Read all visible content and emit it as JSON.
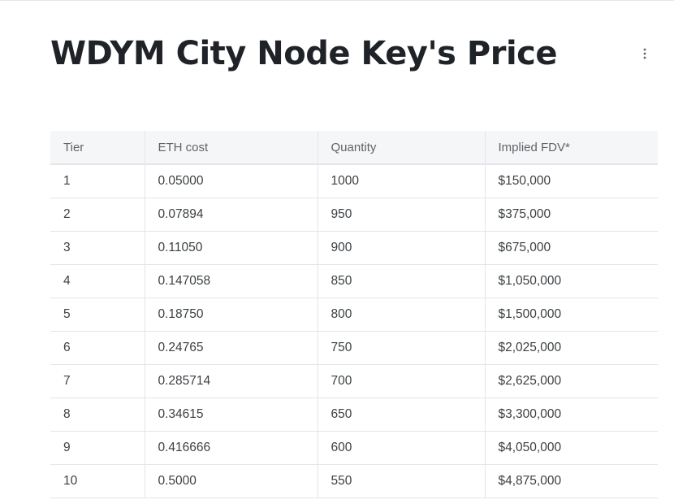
{
  "page": {
    "title": "WDYM City Node Key's Price"
  },
  "toolbar": {
    "more_icon": "more-vertical-icon"
  },
  "table": {
    "columns": [
      "Tier",
      "ETH cost",
      "Quantity",
      "Implied FDV*"
    ],
    "rows": [
      [
        "1",
        "0.05000",
        "1000",
        "$150,000"
      ],
      [
        "2",
        "0.07894",
        "950",
        "$375,000"
      ],
      [
        "3",
        "0.11050",
        "900",
        "$675,000"
      ],
      [
        "4",
        "0.147058",
        "850",
        "$1,050,000"
      ],
      [
        "5",
        "0.18750",
        "800",
        "$1,500,000"
      ],
      [
        "6",
        "0.24765",
        "750",
        "$2,025,000"
      ],
      [
        "7",
        "0.285714",
        "700",
        "$2,625,000"
      ],
      [
        "8",
        "0.34615",
        "650",
        "$3,300,000"
      ],
      [
        "9",
        "0.416666",
        "600",
        "$4,050,000"
      ],
      [
        "10",
        "0.5000",
        "550",
        "$4,875,000"
      ]
    ]
  },
  "colors": {
    "title": "#1f2328",
    "header_bg": "#f5f6f7",
    "border": "#e3e5e8",
    "text": "#3c4043",
    "header_text": "#5f6368"
  }
}
